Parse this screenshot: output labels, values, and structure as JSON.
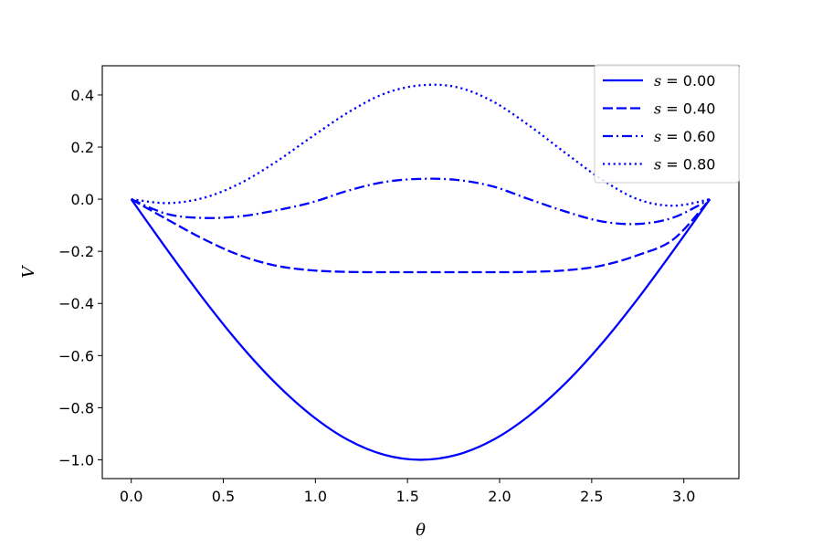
{
  "chart_data": {
    "type": "line",
    "title": "",
    "xlabel": "θ",
    "ylabel": "V",
    "xlim": [
      -0.157,
      3.299
    ],
    "ylim": [
      -1.072,
      0.512
    ],
    "xticks": [
      0.0,
      0.5,
      1.0,
      1.5,
      2.0,
      2.5,
      3.0
    ],
    "xtick_labels": [
      "0.0",
      "0.5",
      "1.0",
      "1.5",
      "2.0",
      "2.5",
      "3.0"
    ],
    "yticks": [
      0.4,
      0.2,
      0.0,
      -0.2,
      -0.4,
      -0.6,
      -0.8,
      -1.0
    ],
    "ytick_labels": [
      "0.4",
      "0.2",
      "0.0",
      "−0.2",
      "−0.4",
      "−0.6",
      "−0.8",
      "−1.0"
    ],
    "grid": false,
    "legend_position": "top-right",
    "line_color": "#0000ff",
    "series": [
      {
        "name": "s = 0.00",
        "label_var": "s",
        "label_value": "0.00",
        "dash": "solid",
        "x": [
          0.0,
          0.1963,
          0.3927,
          0.589,
          0.7854,
          0.9817,
          1.1781,
          1.3744,
          1.5708,
          1.7671,
          1.9635,
          2.1598,
          2.3562,
          2.5525,
          2.7489,
          2.9452,
          3.1416
        ],
        "y": [
          0.0,
          -0.195,
          -0.383,
          -0.556,
          -0.707,
          -0.831,
          -0.924,
          -0.981,
          -1.0,
          -0.981,
          -0.924,
          -0.831,
          -0.707,
          -0.556,
          -0.383,
          -0.195,
          0.0
        ]
      },
      {
        "name": "s = 0.40",
        "label_var": "s",
        "label_value": "0.40",
        "dash": "dashed",
        "x": [
          0.0,
          0.1963,
          0.3927,
          0.589,
          0.7854,
          0.9817,
          1.1781,
          1.3744,
          1.5708,
          1.7671,
          1.9635,
          2.1598,
          2.3562,
          2.5525,
          2.7489,
          2.9452,
          3.1416
        ],
        "y": [
          0.0,
          -0.078,
          -0.153,
          -0.215,
          -0.255,
          -0.273,
          -0.279,
          -0.28,
          -0.28,
          -0.28,
          -0.28,
          -0.279,
          -0.273,
          -0.255,
          -0.215,
          -0.153,
          0.0
        ]
      },
      {
        "name": "s = 0.60",
        "label_var": "s",
        "label_value": "0.60",
        "dash": "dashdot",
        "x": [
          0.0,
          0.1963,
          0.3927,
          0.589,
          0.7854,
          0.9817,
          1.1781,
          1.3744,
          1.5708,
          1.7671,
          1.9635,
          2.1598,
          2.3562,
          2.5525,
          2.7489,
          2.9452,
          3.1416
        ],
        "y": [
          0.0,
          -0.057,
          -0.072,
          -0.066,
          -0.043,
          -0.012,
          0.033,
          0.066,
          0.078,
          0.074,
          0.049,
          0.0,
          -0.047,
          -0.085,
          -0.095,
          -0.07,
          0.0
        ]
      },
      {
        "name": "s = 0.80",
        "label_var": "s",
        "label_value": "0.80",
        "dash": "dotted",
        "x": [
          0.0,
          0.1963,
          0.3927,
          0.589,
          0.7854,
          0.9817,
          1.1781,
          1.3744,
          1.5708,
          1.7671,
          1.9635,
          2.1598,
          2.3562,
          2.5525,
          2.7489,
          2.9452,
          3.1416
        ],
        "y": [
          0.0,
          -0.015,
          0.005,
          0.06,
          0.143,
          0.24,
          0.333,
          0.405,
          0.437,
          0.43,
          0.375,
          0.283,
          0.178,
          0.077,
          0.0,
          -0.025,
          0.0
        ]
      }
    ]
  }
}
